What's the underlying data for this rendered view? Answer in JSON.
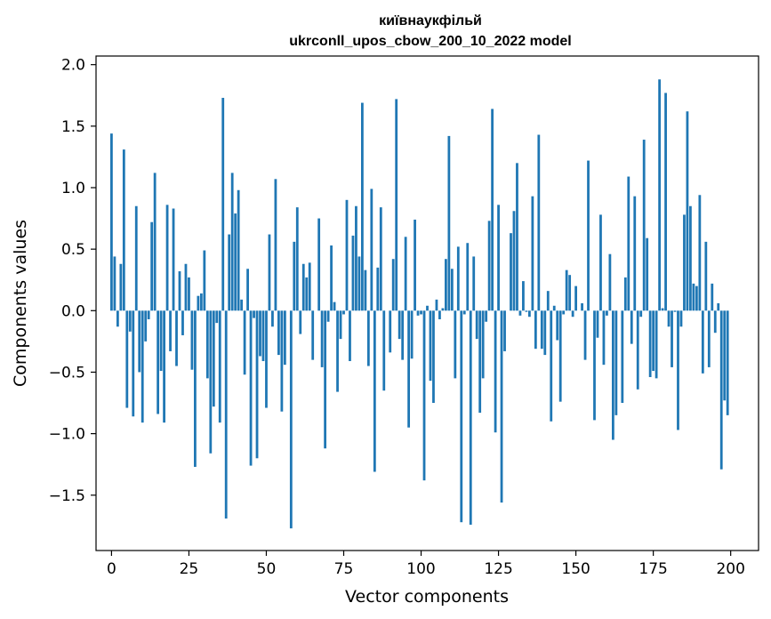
{
  "chart_data": {
    "type": "bar",
    "title_line1": "київнаукфільй",
    "title_line2": "ukrconll_upos_cbow_200_10_2022 model",
    "xlabel": "Vector components",
    "ylabel": "Components values",
    "xlim": [
      -5,
      209
    ],
    "ylim": [
      -1.95,
      2.07
    ],
    "xticks": [
      0,
      25,
      50,
      75,
      100,
      125,
      150,
      175,
      200
    ],
    "yticks": [
      -1.5,
      -1.0,
      -0.5,
      0.0,
      0.5,
      1.0,
      1.5,
      2.0
    ],
    "ytick_labels": [
      "−1.5",
      "−1.0",
      "−0.5",
      "0.0",
      "0.5",
      "1.0",
      "1.5",
      "2.0"
    ],
    "grid": false,
    "bar_color": "#1f77b4",
    "values": [
      1.44,
      0.44,
      -0.13,
      0.38,
      1.31,
      -0.79,
      -0.17,
      -0.86,
      0.85,
      -0.5,
      -0.91,
      -0.25,
      -0.07,
      0.72,
      1.12,
      -0.84,
      -0.49,
      -0.91,
      0.86,
      -0.33,
      0.83,
      -0.45,
      0.32,
      -0.2,
      0.38,
      0.27,
      -0.48,
      -1.27,
      0.12,
      0.14,
      0.49,
      -0.55,
      -1.16,
      -0.78,
      -0.1,
      -0.91,
      1.73,
      -1.69,
      0.62,
      1.12,
      0.79,
      0.98,
      0.09,
      -0.52,
      0.34,
      -1.26,
      -0.06,
      -1.2,
      -0.37,
      -0.41,
      -0.79,
      0.62,
      -0.13,
      1.07,
      -0.36,
      -0.82,
      -0.44,
      0.0,
      -1.77,
      0.56,
      0.84,
      -0.19,
      0.38,
      0.27,
      0.39,
      -0.4,
      0.0,
      0.75,
      -0.46,
      -1.12,
      -0.09,
      0.53,
      0.07,
      -0.66,
      -0.23,
      -0.03,
      0.9,
      -0.41,
      0.61,
      0.85,
      0.44,
      1.69,
      0.33,
      -0.45,
      0.99,
      -1.31,
      0.35,
      0.84,
      -0.65,
      0.0,
      -0.34,
      0.42,
      1.72,
      -0.23,
      -0.4,
      0.6,
      -0.95,
      -0.39,
      0.74,
      -0.04,
      -0.03,
      -1.38,
      0.04,
      -0.57,
      -0.75,
      0.09,
      -0.07,
      0.02,
      0.42,
      1.42,
      0.34,
      -0.55,
      0.52,
      -1.72,
      -0.03,
      0.55,
      -1.74,
      0.44,
      -0.23,
      -0.83,
      -0.55,
      -0.09,
      0.73,
      1.64,
      -0.99,
      0.86,
      -1.56,
      -0.33,
      0.0,
      0.63,
      0.81,
      1.2,
      -0.04,
      0.24,
      -0.01,
      -0.05,
      0.93,
      -0.31,
      1.43,
      -0.31,
      -0.36,
      0.16,
      -0.9,
      0.04,
      -0.24,
      -0.74,
      -0.03,
      0.33,
      0.29,
      -0.05,
      0.2,
      0.0,
      0.06,
      -0.4,
      1.22,
      0.0,
      -0.89,
      -0.22,
      0.78,
      -0.44,
      -0.04,
      0.46,
      -1.05,
      -0.85,
      0.0,
      -0.75,
      0.27,
      1.09,
      -0.27,
      0.93,
      -0.64,
      -0.05,
      1.39,
      0.59,
      -0.54,
      -0.49,
      -0.55,
      1.88,
      0.02,
      1.77,
      -0.13,
      -0.46,
      -0.01,
      -0.97,
      -0.13,
      0.78,
      1.62,
      0.85,
      0.22,
      0.2,
      0.94,
      -0.51,
      0.56,
      -0.46,
      0.22,
      -0.18,
      0.06,
      -1.29,
      -0.73,
      -0.85
    ]
  }
}
